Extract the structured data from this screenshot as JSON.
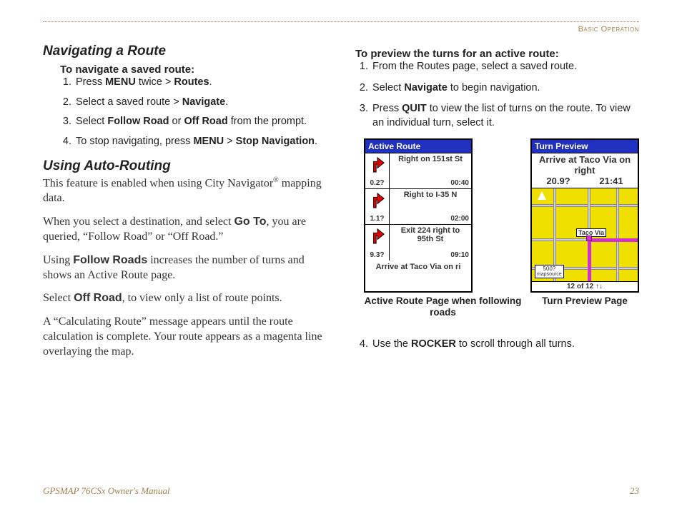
{
  "header": {
    "section": "Basic Operation"
  },
  "left": {
    "h_nav": "Navigating a Route",
    "h_nav_sub": "To navigate a saved route:",
    "nav_steps": [
      "Press <b>MENU</b> twice > <b>Routes</b>.",
      "Select a saved route > <b>Navigate</b>.",
      "Select <b>Follow Road</b> or <b>Off Road</b> from the prompt.",
      "To stop navigating, press <b>MENU</b> > <b>Stop Navigation</b>."
    ],
    "h_auto": "Using Auto-Routing",
    "auto_p1": "This feature is enabled when using City Navigator<span class='sup'>®</span> mapping data.",
    "auto_p2": "When you select a destination, and select <b>Go To</b>, you are queried, “Follow Road” or “Off Road.”",
    "auto_p3": "Using <b>Follow Roads</b> increases the number of turns and shows an Active Route page.",
    "auto_p4": "Select <b>Off Road</b>, to view only a list of route points.",
    "auto_p5": "A “Calculating Route” message appears until the route calculation is complete. Your route appears as a magenta line overlaying the map."
  },
  "right": {
    "h_preview": "To preview the turns for an active route:",
    "preview_steps_a": [
      "From the Routes page, select a saved route.",
      "Select <b>Navigate</b> to begin navigation.",
      "Press <b>QUIT</b> to view the list of turns on the route. To view an individual turn, select it."
    ],
    "preview_step_4": "Use the <b>ROCKER</b> to scroll through all turns.",
    "active_route": {
      "title": "Active Route",
      "rows": [
        {
          "dist": "0.2?",
          "text": "Right on 151st St",
          "time": "00:40"
        },
        {
          "dist": "1.1?",
          "text": "Right to I-35 N",
          "time": "02:00"
        },
        {
          "dist": "9.3?",
          "text": "Exit 224 right to 95th St",
          "time": "09:10"
        }
      ],
      "arrive": "Arrive at Taco Via on ri",
      "caption": "Active Route Page when following roads"
    },
    "turn_preview": {
      "title": "Turn Preview",
      "heading": "Arrive at Taco Via on right",
      "stat1": "20.9?",
      "stat2": "21:41",
      "dest": "Taco Via",
      "scale": "500?",
      "source": "mapsource",
      "footer": "12 of 12  ↑↓",
      "caption": "Turn Preview Page"
    }
  },
  "footer": {
    "left": "GPSMAP 76CSx Owner's Manual",
    "page": "23"
  },
  "colors": {
    "accent": "#a08050",
    "titlebar": "#2030c0",
    "map_bg": "#f0e000",
    "route": "#d030d0",
    "arrow": "#e00000"
  }
}
